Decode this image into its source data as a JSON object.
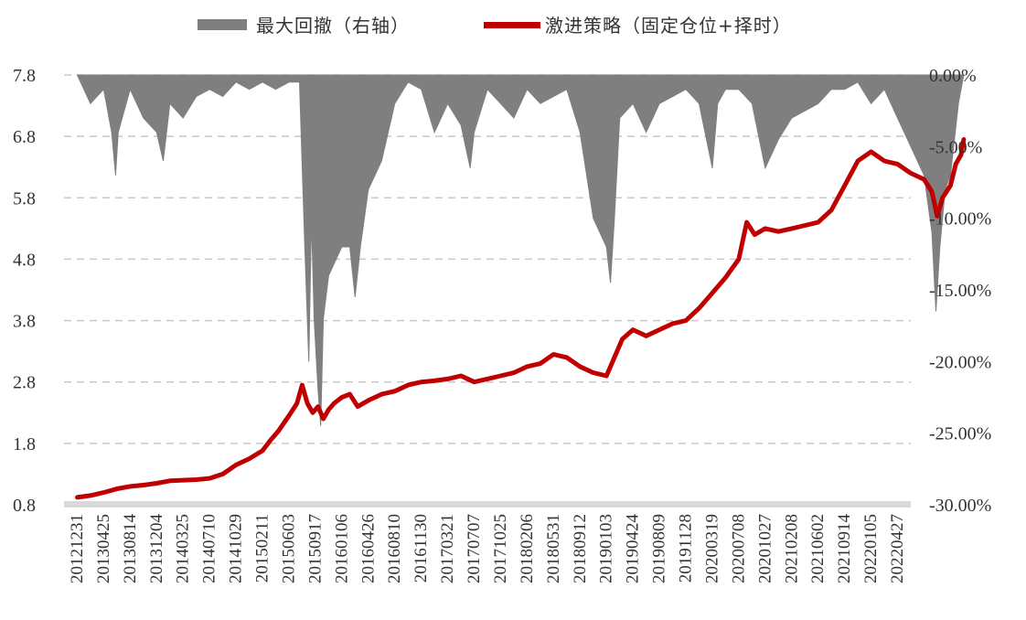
{
  "chart_data": {
    "type": "line",
    "title": "",
    "colors": {
      "drawdown": "#7f7f7f",
      "nav": "#c00000",
      "grid": "#c8c8c8",
      "baseline": "#d9d9d9"
    },
    "legend": {
      "placement": "top",
      "items": [
        {
          "label": "最大回撤（右轴）",
          "color": "#7f7f7f",
          "kind": "area"
        },
        {
          "label": "激进策略（固定仓位+择时）",
          "color": "#c00000",
          "kind": "line"
        }
      ]
    },
    "y_left": {
      "ylim": [
        0.8,
        7.8
      ],
      "ticks": [
        0.8,
        1.8,
        2.8,
        3.8,
        4.8,
        5.8,
        6.8,
        7.8
      ],
      "tick_labels": [
        "0.8",
        "1.8",
        "2.8",
        "3.8",
        "4.8",
        "5.8",
        "6.8",
        "7.8"
      ]
    },
    "y_right": {
      "ylim": [
        -30,
        0
      ],
      "ticks": [
        0,
        -5,
        -10,
        -15,
        -20,
        -25,
        -30
      ],
      "tick_labels": [
        "0.00%",
        "-5.00%",
        "-10.00%",
        "-15.00%",
        "-20.00%",
        "-25.00%",
        "-30.00%"
      ]
    },
    "grid": true,
    "x_tick_labels": [
      "20121231",
      "20130425",
      "20130814",
      "20131204",
      "20140325",
      "20140710",
      "20141029",
      "20150211",
      "20150603",
      "20150917",
      "20160106",
      "20160426",
      "20160810",
      "20161130",
      "20170321",
      "20170707",
      "20171025",
      "20180206",
      "20180531",
      "20180912",
      "20190103",
      "20190424",
      "20190809",
      "20191128",
      "20200319",
      "20200708",
      "20201027",
      "20210208",
      "20210602",
      "20210914",
      "20220105",
      "20220427"
    ],
    "series": [
      {
        "name": "激进策略（固定仓位+择时）",
        "axis": "left",
        "points": [
          [
            0,
            0.92
          ],
          [
            0.5,
            0.95
          ],
          [
            1,
            1.0
          ],
          [
            1.5,
            1.06
          ],
          [
            2,
            1.1
          ],
          [
            2.5,
            1.12
          ],
          [
            3,
            1.15
          ],
          [
            3.5,
            1.19
          ],
          [
            4,
            1.2
          ],
          [
            4.5,
            1.21
          ],
          [
            5,
            1.23
          ],
          [
            5.5,
            1.3
          ],
          [
            6,
            1.45
          ],
          [
            6.5,
            1.55
          ],
          [
            7,
            1.68
          ],
          [
            7.3,
            1.85
          ],
          [
            7.6,
            2.0
          ],
          [
            8,
            2.25
          ],
          [
            8.3,
            2.45
          ],
          [
            8.5,
            2.75
          ],
          [
            8.7,
            2.45
          ],
          [
            8.9,
            2.3
          ],
          [
            9.1,
            2.4
          ],
          [
            9.3,
            2.2
          ],
          [
            9.5,
            2.35
          ],
          [
            9.7,
            2.45
          ],
          [
            10,
            2.55
          ],
          [
            10.3,
            2.6
          ],
          [
            10.6,
            2.4
          ],
          [
            11,
            2.5
          ],
          [
            11.5,
            2.6
          ],
          [
            12,
            2.65
          ],
          [
            12.5,
            2.75
          ],
          [
            13,
            2.8
          ],
          [
            13.5,
            2.82
          ],
          [
            14,
            2.85
          ],
          [
            14.5,
            2.9
          ],
          [
            15,
            2.8
          ],
          [
            15.5,
            2.85
          ],
          [
            16,
            2.9
          ],
          [
            16.5,
            2.95
          ],
          [
            17,
            3.05
          ],
          [
            17.5,
            3.1
          ],
          [
            18,
            3.25
          ],
          [
            18.5,
            3.2
          ],
          [
            19,
            3.05
          ],
          [
            19.5,
            2.95
          ],
          [
            20,
            2.9
          ],
          [
            20.3,
            3.2
          ],
          [
            20.6,
            3.5
          ],
          [
            21,
            3.65
          ],
          [
            21.5,
            3.55
          ],
          [
            22,
            3.65
          ],
          [
            22.5,
            3.75
          ],
          [
            23,
            3.8
          ],
          [
            23.5,
            4.0
          ],
          [
            24,
            4.25
          ],
          [
            24.5,
            4.5
          ],
          [
            25,
            4.8
          ],
          [
            25.3,
            5.4
          ],
          [
            25.6,
            5.2
          ],
          [
            26,
            5.3
          ],
          [
            26.5,
            5.25
          ],
          [
            27,
            5.3
          ],
          [
            27.5,
            5.35
          ],
          [
            28,
            5.4
          ],
          [
            28.5,
            5.6
          ],
          [
            29,
            6.0
          ],
          [
            29.5,
            6.4
          ],
          [
            30,
            6.55
          ],
          [
            30.5,
            6.4
          ],
          [
            31,
            6.35
          ],
          [
            31.5,
            6.2
          ],
          [
            32,
            6.1
          ],
          [
            32.3,
            5.9
          ],
          [
            32.5,
            5.5
          ],
          [
            32.7,
            5.8
          ],
          [
            33,
            6.0
          ],
          [
            33.2,
            6.35
          ],
          [
            33.4,
            6.5
          ],
          [
            33.5,
            6.75
          ]
        ]
      },
      {
        "name": "最大回撤（右轴）",
        "axis": "right",
        "points": [
          [
            0,
            0
          ],
          [
            0.5,
            -2
          ],
          [
            1,
            -1
          ],
          [
            1.3,
            -4
          ],
          [
            1.45,
            -7
          ],
          [
            1.55,
            -4
          ],
          [
            2,
            -1
          ],
          [
            2.5,
            -3
          ],
          [
            3,
            -4
          ],
          [
            3.25,
            -6
          ],
          [
            3.5,
            -2
          ],
          [
            4,
            -3
          ],
          [
            4.5,
            -1.5
          ],
          [
            5,
            -1
          ],
          [
            5.5,
            -1.5
          ],
          [
            6,
            -0.5
          ],
          [
            6.5,
            -1
          ],
          [
            7,
            -0.5
          ],
          [
            7.5,
            -1
          ],
          [
            8,
            -0.5
          ],
          [
            8.4,
            -0.5
          ],
          [
            8.6,
            -12
          ],
          [
            8.75,
            -20
          ],
          [
            8.85,
            -10
          ],
          [
            8.95,
            -17
          ],
          [
            9.1,
            -22
          ],
          [
            9.2,
            -24.5
          ],
          [
            9.3,
            -17
          ],
          [
            9.5,
            -14
          ],
          [
            10,
            -12
          ],
          [
            10.3,
            -12
          ],
          [
            10.5,
            -15.5
          ],
          [
            10.7,
            -12
          ],
          [
            11,
            -8
          ],
          [
            11.5,
            -6
          ],
          [
            12,
            -2
          ],
          [
            12.5,
            -0.5
          ],
          [
            13,
            -1
          ],
          [
            13.5,
            -4
          ],
          [
            14,
            -2
          ],
          [
            14.5,
            -3.5
          ],
          [
            14.85,
            -6.5
          ],
          [
            15,
            -4
          ],
          [
            15.5,
            -1
          ],
          [
            16,
            -2
          ],
          [
            16.5,
            -3
          ],
          [
            17,
            -1
          ],
          [
            17.5,
            -2
          ],
          [
            18,
            -1.5
          ],
          [
            18.5,
            -1
          ],
          [
            19,
            -4
          ],
          [
            19.5,
            -10
          ],
          [
            20,
            -12
          ],
          [
            20.15,
            -14.5
          ],
          [
            20.3,
            -10
          ],
          [
            20.5,
            -3
          ],
          [
            21,
            -2
          ],
          [
            21.5,
            -4
          ],
          [
            22,
            -2
          ],
          [
            22.5,
            -1.5
          ],
          [
            23,
            -1
          ],
          [
            23.5,
            -2
          ],
          [
            24,
            -6.5
          ],
          [
            24.2,
            -2
          ],
          [
            24.5,
            -1
          ],
          [
            25,
            -1
          ],
          [
            25.5,
            -2
          ],
          [
            26,
            -6.5
          ],
          [
            26.5,
            -4.5
          ],
          [
            27,
            -3
          ],
          [
            27.5,
            -2.5
          ],
          [
            28,
            -2
          ],
          [
            28.5,
            -1
          ],
          [
            29,
            -1
          ],
          [
            29.5,
            -0.5
          ],
          [
            30,
            -2
          ],
          [
            30.5,
            -1
          ],
          [
            31,
            -3
          ],
          [
            31.5,
            -5
          ],
          [
            32,
            -7
          ],
          [
            32.3,
            -11
          ],
          [
            32.45,
            -16.5
          ],
          [
            32.6,
            -12
          ],
          [
            32.8,
            -8
          ],
          [
            33,
            -7
          ],
          [
            33.3,
            -2
          ],
          [
            33.5,
            0
          ]
        ]
      }
    ]
  }
}
